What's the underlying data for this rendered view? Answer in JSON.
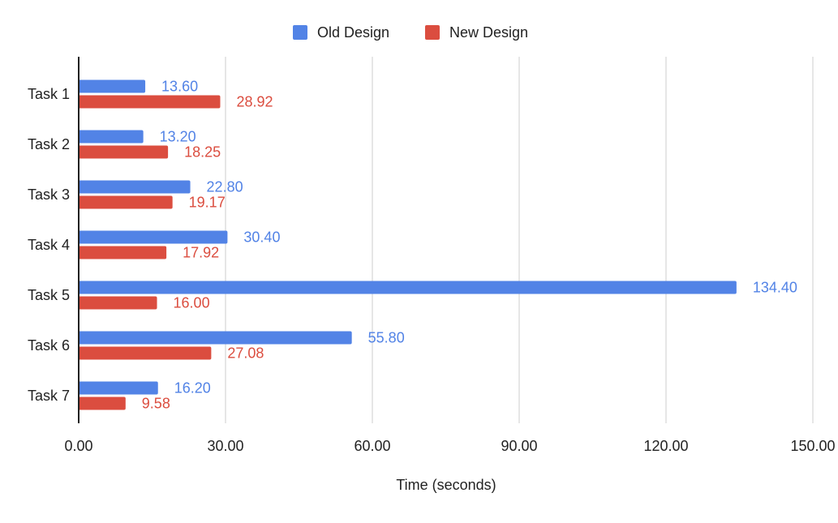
{
  "chart_data": {
    "type": "bar",
    "orientation": "horizontal",
    "categories": [
      "Task 1",
      "Task 2",
      "Task 3",
      "Task 4",
      "Task 5",
      "Task 6",
      "Task 7"
    ],
    "series": [
      {
        "name": "Old Design",
        "color": "#5283E6",
        "values": [
          13.6,
          13.2,
          22.8,
          30.4,
          134.4,
          55.8,
          16.2
        ],
        "labels": [
          "13.60",
          "13.20",
          "22.80",
          "30.40",
          "134.40",
          "55.80",
          "16.20"
        ]
      },
      {
        "name": "New Design",
        "color": "#DB4D3F",
        "values": [
          28.92,
          18.25,
          19.17,
          17.92,
          16.0,
          27.08,
          9.58
        ],
        "labels": [
          "28.92",
          "18.25",
          "19.17",
          "17.92",
          "16.00",
          "27.08",
          "9.58"
        ]
      }
    ],
    "xlabel": "Time (seconds)",
    "ylabel": "",
    "title": "",
    "xlim": [
      0,
      150
    ],
    "xticks": [
      0,
      30,
      60,
      90,
      120,
      150
    ],
    "xtick_labels": [
      "0.00",
      "30.00",
      "60.00",
      "90.00",
      "120.00",
      "150.00"
    ],
    "grid": "vertical",
    "legend": "top-center",
    "gridline_color": "#CCCCCC",
    "axis_color": "#222222"
  }
}
